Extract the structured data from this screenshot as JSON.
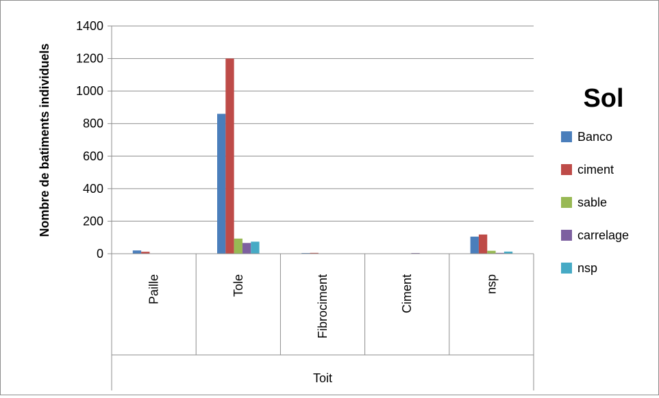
{
  "chart_data": {
    "type": "bar",
    "title": "",
    "xlabel": "Toit",
    "ylabel": "Nombre de batiments individuels",
    "ylim": [
      0,
      1400
    ],
    "yticks": [
      0,
      200,
      400,
      600,
      800,
      1000,
      1200,
      1400
    ],
    "grid": true,
    "legend_title": "Sol",
    "legend_position": "right",
    "categories": [
      "Paille",
      "Tole",
      "Fibrociment",
      "Ciment",
      "nsp"
    ],
    "series": [
      {
        "name": "Banco",
        "color": "#4a7ebb",
        "values": [
          20,
          860,
          4,
          1,
          105
        ]
      },
      {
        "name": "ciment",
        "color": "#be4b48",
        "values": [
          12,
          1200,
          5,
          1,
          118
        ]
      },
      {
        "name": "sable",
        "color": "#98b954",
        "values": [
          1,
          93,
          1,
          1,
          18
        ]
      },
      {
        "name": "carrelage",
        "color": "#7d60a0",
        "values": [
          1,
          66,
          1,
          4,
          5
        ]
      },
      {
        "name": "nsp",
        "color": "#46aac5",
        "values": [
          1,
          74,
          1,
          1,
          13
        ]
      }
    ]
  }
}
